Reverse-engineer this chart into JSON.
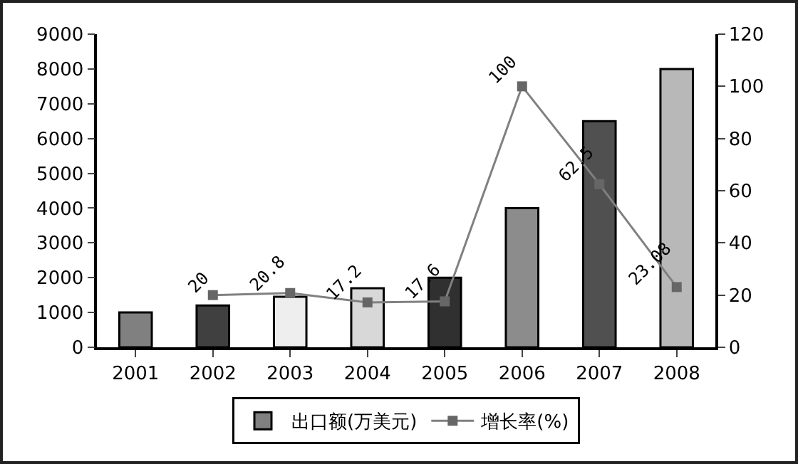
{
  "chart_data": {
    "type": "bar",
    "categories": [
      "2001",
      "2002",
      "2003",
      "2004",
      "2005",
      "2006",
      "2007",
      "2008"
    ],
    "series": [
      {
        "name": "出口额(万美元)",
        "colors": [
          "#808080",
          "#404040",
          "#eeeeee",
          "#d8d8d8",
          "#303030",
          "#8c8c8c",
          "#505050",
          "#b8b8b8"
        ],
        "values": [
          1000,
          1200,
          1450,
          1700,
          2000,
          4000,
          6500,
          8000
        ]
      },
      {
        "name": "增长率(%)",
        "type": "line",
        "axis": "y2",
        "color": "#808080",
        "marker": "square",
        "data_labels": true,
        "values": [
          null,
          20,
          20.8,
          17.2,
          17.6,
          100,
          62.5,
          23.08
        ]
      }
    ],
    "ylim": [
      0,
      9000
    ],
    "yticks": [
      0,
      1000,
      2000,
      3000,
      4000,
      5000,
      6000,
      7000,
      8000,
      9000
    ],
    "y2lim": [
      0,
      120
    ],
    "y2ticks": [
      0,
      20,
      40,
      60,
      80,
      100,
      120
    ],
    "grid": false,
    "legend": "bottom"
  }
}
